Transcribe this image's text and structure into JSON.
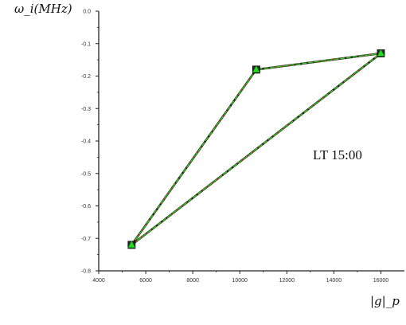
{
  "chart_data": {
    "type": "line",
    "ylabel": "ω_i(MHz)",
    "xlabel": "|g|_p",
    "annotation": "LT 15:00",
    "xlim": [
      4000,
      17000
    ],
    "ylim": [
      -0.8,
      0.0
    ],
    "x_ticks": [
      4000,
      6000,
      8000,
      10000,
      12000,
      14000,
      16000
    ],
    "x_tick_labels": [
      "4000",
      "6000",
      "8000",
      "10000",
      "12000",
      "14000",
      "16000"
    ],
    "y_ticks": [
      0.0,
      -0.1,
      -0.2,
      -0.3,
      -0.4,
      -0.5,
      -0.6,
      -0.7,
      -0.8
    ],
    "y_tick_labels": [
      "0.0",
      "-0.1",
      "-0.2",
      "-0.3",
      "-0.4",
      "-0.5",
      "-0.6",
      "-0.7",
      "-0.8"
    ],
    "grid": false,
    "series": [
      {
        "color": "#c0392b",
        "marker": "square",
        "x": [
          5400,
          10700,
          16000,
          5400
        ],
        "y": [
          -0.72,
          -0.18,
          -0.13,
          -0.72
        ]
      },
      {
        "color": "#22dd22",
        "marker": "triangle",
        "x": [
          5400,
          10700,
          16000,
          5400
        ],
        "y": [
          -0.72,
          -0.18,
          -0.13,
          -0.72
        ]
      }
    ]
  }
}
